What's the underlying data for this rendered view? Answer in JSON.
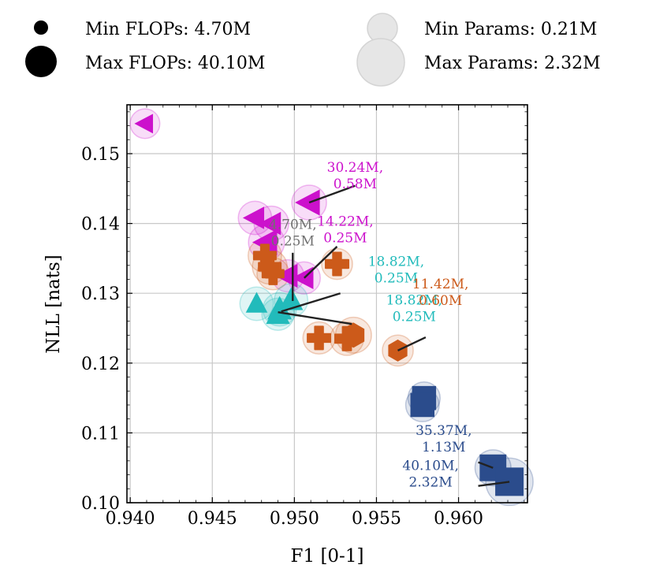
{
  "colors": {
    "magenta": "#CC11CC",
    "orange": "#CC5A1A",
    "teal": "#22BBBB",
    "navy": "#2B4C8C",
    "grey": "#707070",
    "halo_fill": "#e6e6e6",
    "halo_stroke": "#d4d4d4",
    "grid": "#c8c8c8"
  },
  "legend": {
    "flops_min": "Min FLOPs: 4.70M",
    "flops_max": "Max FLOPs: 40.10M",
    "params_min": "Min Params: 0.21M",
    "params_max": "Max Params: 2.32M"
  },
  "chart_data": {
    "type": "scatter",
    "title": "",
    "xlabel": "F1 [0-1]",
    "ylabel": "NLL [nats]",
    "xlim": [
      0.9398,
      0.9642
    ],
    "ylim": [
      0.1,
      0.157
    ],
    "xticks": [
      0.94,
      0.945,
      0.95,
      0.955,
      0.96
    ],
    "xtick_labels": [
      "0.940",
      "0.945",
      "0.950",
      "0.955",
      "0.960"
    ],
    "yticks": [
      0.1,
      0.11,
      0.12,
      0.13,
      0.14,
      0.15
    ],
    "ytick_labels": [
      "0.10",
      "0.11",
      "0.12",
      "0.13",
      "0.14",
      "0.15"
    ],
    "grid": true,
    "series": [
      {
        "name": "magenta-triangle-left",
        "marker": "triangle-left",
        "color": "#CC11CC",
        "points": [
          {
            "x": 0.9409,
            "y": 0.1543,
            "size": 0.55,
            "halo": 0.3
          },
          {
            "x": 0.9509,
            "y": 0.143,
            "size": 1.0,
            "halo": 0.5
          },
          {
            "x": 0.9476,
            "y": 0.1408,
            "size": 0.75,
            "halo": 0.45
          },
          {
            "x": 0.9486,
            "y": 0.14,
            "size": 0.8,
            "halo": 0.5
          },
          {
            "x": 0.9483,
            "y": 0.1373,
            "size": 1.0,
            "halo": 0.55
          },
          {
            "x": 0.9496,
            "y": 0.1325,
            "size": 0.85,
            "halo": 0.4
          },
          {
            "x": 0.9506,
            "y": 0.1322,
            "size": 0.75,
            "halo": 0.4
          }
        ]
      },
      {
        "name": "orange-plus",
        "marker": "plus",
        "color": "#CC5A1A",
        "points": [
          {
            "x": 0.9482,
            "y": 0.1354,
            "size": 0.6,
            "halo": 0.45
          },
          {
            "x": 0.9485,
            "y": 0.1338,
            "size": 0.6,
            "halo": 0.5
          },
          {
            "x": 0.9487,
            "y": 0.1328,
            "size": 0.55,
            "halo": 0.4
          },
          {
            "x": 0.9526,
            "y": 0.1342,
            "size": 0.65,
            "halo": 0.35
          },
          {
            "x": 0.9515,
            "y": 0.1236,
            "size": 0.65,
            "halo": 0.4
          },
          {
            "x": 0.9532,
            "y": 0.1235,
            "size": 0.7,
            "halo": 0.45
          }
        ]
      },
      {
        "name": "orange-hexagon",
        "marker": "hexagon",
        "color": "#CC5A1A",
        "points": [
          {
            "x": 0.9536,
            "y": 0.124,
            "size": 0.8,
            "halo": 0.55
          },
          {
            "x": 0.9563,
            "y": 0.1218,
            "size": 0.6,
            "halo": 0.35
          }
        ]
      },
      {
        "name": "teal-triangle-up",
        "marker": "triangle-up",
        "color": "#22BBBB",
        "points": [
          {
            "x": 0.9477,
            "y": 0.1285,
            "size": 0.7,
            "halo": 0.45
          },
          {
            "x": 0.9498,
            "y": 0.129,
            "size": 0.85,
            "halo": 0.45
          },
          {
            "x": 0.9491,
            "y": 0.1277,
            "size": 0.9,
            "halo": 0.45
          },
          {
            "x": 0.949,
            "y": 0.127,
            "size": 0.85,
            "halo": 0.4
          }
        ]
      },
      {
        "name": "navy-square",
        "marker": "square",
        "color": "#2B4C8C",
        "points": [
          {
            "x": 0.9579,
            "y": 0.115,
            "size": 0.75,
            "halo": 0.4
          },
          {
            "x": 0.9578,
            "y": 0.114,
            "size": 0.75,
            "halo": 0.45
          },
          {
            "x": 0.9621,
            "y": 0.105,
            "size": 0.9,
            "halo": 0.55
          },
          {
            "x": 0.9631,
            "y": 0.103,
            "size": 1.0,
            "halo": 1.0
          }
        ]
      }
    ],
    "annotations": [
      {
        "lines": [
          "30.24M,",
          "0.58M"
        ],
        "color": "#CC11CC",
        "text_x": 0.9537,
        "text_y": 0.1474,
        "anchor": "middle",
        "line_from": [
          0.9509,
          0.143
        ],
        "line_to": [
          0.9537,
          0.1454
        ]
      },
      {
        "lines": [
          "4.70M,",
          "0.25M"
        ],
        "color": "#707070",
        "text_x": 0.9499,
        "text_y": 0.1392,
        "anchor": "middle",
        "line_from": [
          0.9499,
          0.1289
        ],
        "line_to": [
          0.9499,
          0.1358
        ]
      },
      {
        "lines": [
          "14.22M,",
          "0.25M"
        ],
        "color": "#CC11CC",
        "text_x": 0.9531,
        "text_y": 0.1397,
        "anchor": "middle",
        "line_from": [
          0.9506,
          0.1322
        ],
        "line_to": [
          0.9526,
          0.1367
        ]
      },
      {
        "lines": [
          "18.82M,",
          "0.25M"
        ],
        "color": "#22BBBB",
        "text_x": 0.9562,
        "text_y": 0.1339,
        "anchor": "middle",
        "line_from": [
          0.9492,
          0.1274
        ],
        "line_to": [
          0.9528,
          0.13
        ]
      },
      {
        "lines": [
          "18.82M,",
          "0.25M"
        ],
        "color": "#22BBBB",
        "text_x": 0.9573,
        "text_y": 0.1284,
        "anchor": "middle",
        "line_from": [
          0.949,
          0.1273
        ],
        "line_to": [
          0.9535,
          0.1256
        ]
      },
      {
        "lines": [
          "11.42M,",
          "0.60M"
        ],
        "color": "#CC5A1A",
        "text_x": 0.9589,
        "text_y": 0.1307,
        "anchor": "middle",
        "line_from": [
          0.9563,
          0.1218
        ],
        "line_to": [
          0.958,
          0.1237
        ]
      },
      {
        "lines": [
          "35.37M,",
          "1.13M"
        ],
        "color": "#2B4C8C",
        "text_x": 0.9591,
        "text_y": 0.1097,
        "anchor": "middle",
        "line_from": [
          0.9621,
          0.105
        ],
        "line_to": [
          0.9612,
          0.1058
        ]
      },
      {
        "lines": [
          "40.10M,",
          "2.32M"
        ],
        "color": "#2B4C8C",
        "text_x": 0.9583,
        "text_y": 0.1047,
        "anchor": "middle",
        "line_from": [
          0.9631,
          0.103
        ],
        "line_to": [
          0.9612,
          0.1024
        ]
      }
    ]
  }
}
